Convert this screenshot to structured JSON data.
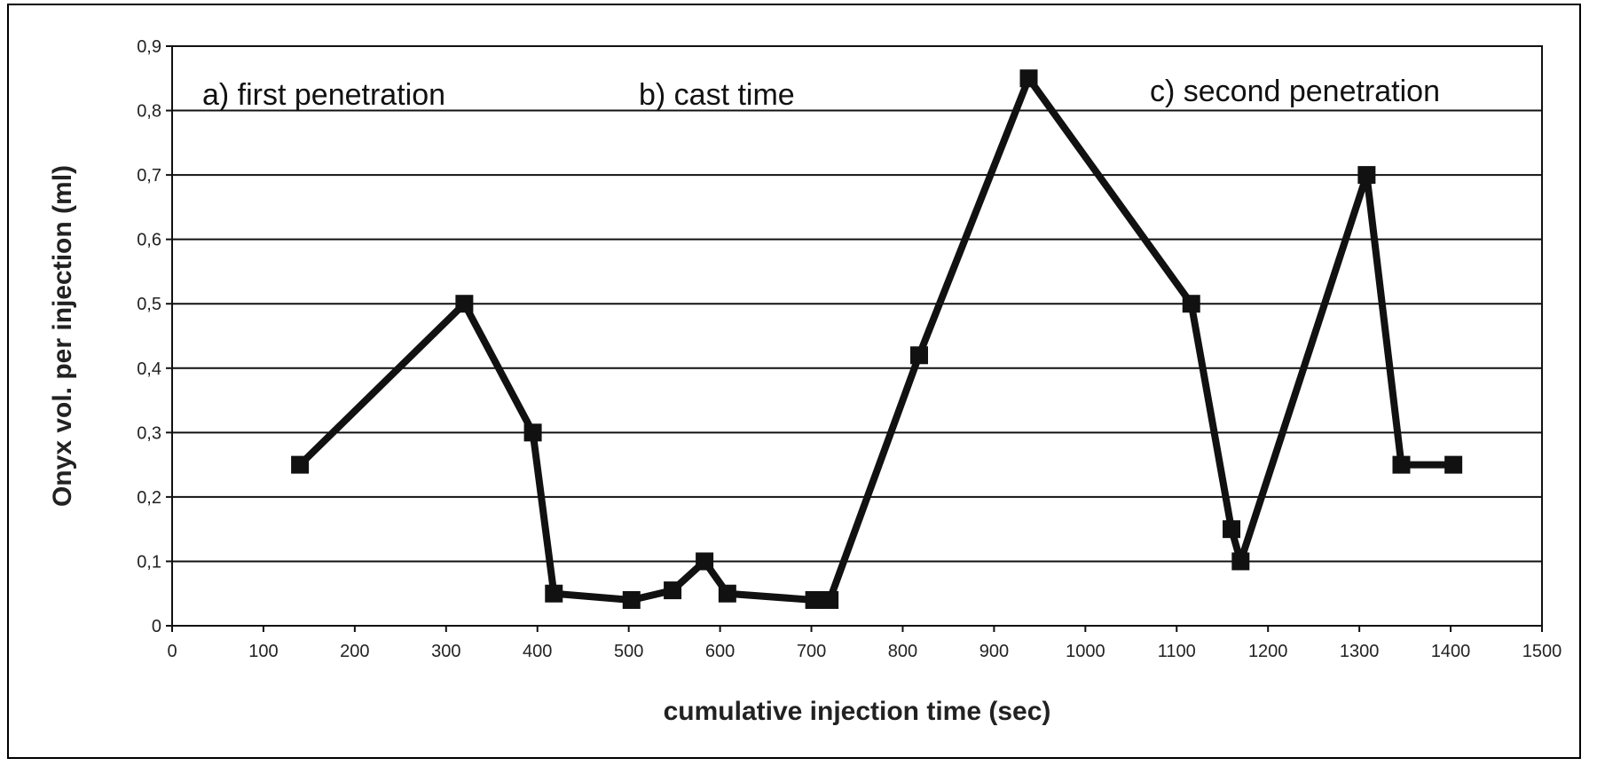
{
  "chart_data": {
    "type": "line",
    "title": "",
    "xlabel": "cumulative injection time (sec)",
    "ylabel": "Onyx vol. per injection (ml)",
    "xlim": [
      0,
      1500
    ],
    "ylim": [
      0,
      0.9
    ],
    "x_ticks": [
      0,
      100,
      200,
      300,
      400,
      500,
      600,
      700,
      800,
      900,
      1000,
      1100,
      1200,
      1300,
      1400,
      1500
    ],
    "y_ticks": [
      0,
      0.1,
      0.2,
      0.3,
      0.4,
      0.5,
      0.6,
      0.7,
      0.8,
      0.9
    ],
    "y_tick_labels": [
      "0",
      "0,1",
      "0,2",
      "0,3",
      "0,4",
      "0,5",
      "0,6",
      "0,7",
      "0,8",
      "0,9"
    ],
    "grid": "horizontal",
    "legend": "none",
    "marker": "square",
    "line_color": "#111111",
    "annotations": [
      "a) first penetration",
      "b) cast time",
      "c) second penetration"
    ],
    "series": [
      {
        "points": [
          {
            "x": 140,
            "y": 0.25
          },
          {
            "x": 320,
            "y": 0.5
          },
          {
            "x": 395,
            "y": 0.3
          },
          {
            "x": 418,
            "y": 0.05
          },
          {
            "x": 503,
            "y": 0.04
          },
          {
            "x": 548,
            "y": 0.055
          },
          {
            "x": 583,
            "y": 0.1
          },
          {
            "x": 608,
            "y": 0.05
          },
          {
            "x": 703,
            "y": 0.04
          },
          {
            "x": 720,
            "y": 0.04
          },
          {
            "x": 818,
            "y": 0.42
          },
          {
            "x": 938,
            "y": 0.85
          },
          {
            "x": 1116,
            "y": 0.5
          },
          {
            "x": 1160,
            "y": 0.15
          },
          {
            "x": 1170,
            "y": 0.1
          },
          {
            "x": 1308,
            "y": 0.7
          },
          {
            "x": 1346,
            "y": 0.25
          },
          {
            "x": 1403,
            "y": 0.25
          }
        ]
      }
    ]
  }
}
